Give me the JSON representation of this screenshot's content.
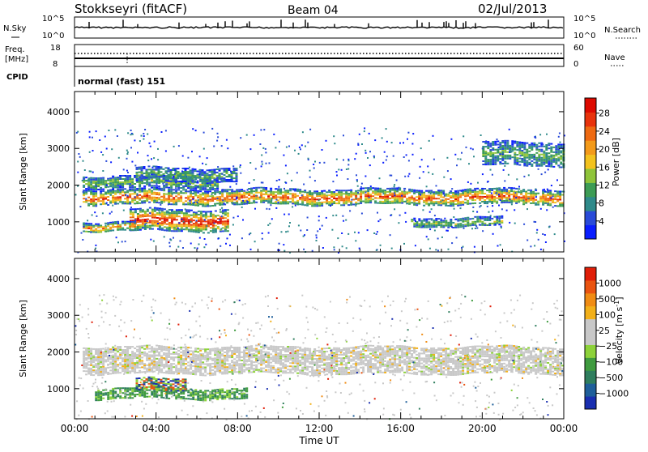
{
  "header": {
    "site": "Stokkseyri (fitACF)",
    "beam": "Beam 04",
    "date": "02/Jul/2013"
  },
  "top_panels": {
    "nsky_label": "N.Sky",
    "nsky_ticks": [
      "10^5",
      "10^0"
    ],
    "nsearch_ticks": [
      "10^5",
      "10^0"
    ],
    "nsearch_label": "N.Search",
    "freq_label": "Freq.",
    "freq_unit": "[MHz]",
    "freq_ticks": [
      "18",
      "8"
    ],
    "nave_ticks": [
      "60",
      "0"
    ],
    "nave_label": "Nave",
    "cpid_label": "CPID",
    "cpid_value": "normal (fast) 151"
  },
  "chart_data": [
    {
      "type": "heatmap",
      "panel": "power",
      "ylabel": "Slant Range [km]",
      "xlabel": "",
      "yticks": [
        "1000",
        "2000",
        "3000",
        "4000"
      ],
      "ylim": [
        180,
        4550
      ],
      "xlim": [
        0,
        24
      ],
      "colorbar": {
        "label": "Power [dB]",
        "tick_labels": [
          "4",
          "8",
          "12",
          "16",
          "20",
          "24",
          "28"
        ],
        "colors": [
          "#0a1eff",
          "#2a4bd8",
          "#2f8a8a",
          "#3d9c55",
          "#8fc43a",
          "#f3c21e",
          "#f39a1a",
          "#ee6a12",
          "#e8330c",
          "#dd0a00"
        ]
      },
      "bands": [
        {
          "start_hour": 0.4,
          "end_hour": 24,
          "center_km": 1680,
          "width_km": 220,
          "level": 0.7
        },
        {
          "start_hour": 2.7,
          "end_hour": 7.5,
          "center_km": 1050,
          "width_km": 300,
          "level": 0.85
        },
        {
          "start_hour": 0.4,
          "end_hour": 3.0,
          "center_km": 880,
          "width_km": 130,
          "level": 0.6
        },
        {
          "start_hour": 16.5,
          "end_hour": 21.0,
          "center_km": 1000,
          "width_km": 130,
          "level": 0.3
        },
        {
          "start_hour": 20.0,
          "end_hour": 24.0,
          "center_km": 2850,
          "width_km": 330,
          "level": 0.25
        },
        {
          "start_hour": 0.4,
          "end_hour": 7.0,
          "center_km": 2100,
          "width_km": 160,
          "level": 0.3
        },
        {
          "start_hour": 3.0,
          "end_hour": 8.0,
          "center_km": 2300,
          "width_km": 180,
          "level": 0.25
        }
      ]
    },
    {
      "type": "heatmap",
      "panel": "velocity",
      "ylabel": "Slant Range [km]",
      "xlabel": "Time UT",
      "yticks": [
        "1000",
        "2000",
        "3000",
        "4000"
      ],
      "xticks": [
        "00:00",
        "04:00",
        "08:00",
        "12:00",
        "16:00",
        "20:00",
        "00:00"
      ],
      "ylim": [
        180,
        4550
      ],
      "xlim": [
        0,
        24
      ],
      "colorbar": {
        "label": "Velocity [m s",
        "label_sup": "-1",
        "label_tail": "]",
        "tick_labels": [
          "1000",
          "500",
          "100",
          "25",
          "−25",
          "−100",
          "−500",
          "−1000"
        ],
        "colors": [
          "#1a2fb0",
          "#1f5f9a",
          "#2f7e5e",
          "#3f9b3f",
          "#8dd23a",
          "#c8c8c8",
          "#c8c8c8",
          "#f2b01a",
          "#f08c14",
          "#ea5410",
          "#e01e08"
        ]
      },
      "bands": [
        {
          "start_hour": 0.4,
          "end_hour": 24,
          "center_km": 1650,
          "width_km": 230,
          "level": 0.5
        },
        {
          "start_hour": 0.4,
          "end_hour": 24,
          "center_km": 2000,
          "width_km": 150,
          "level": 0.5
        },
        {
          "start_hour": 1.0,
          "end_hour": 8.5,
          "center_km": 880,
          "width_km": 140,
          "level": 0.7
        },
        {
          "start_hour": 3.0,
          "end_hour": 5.5,
          "center_km": 1120,
          "width_km": 160,
          "level": 0.95
        }
      ]
    }
  ]
}
